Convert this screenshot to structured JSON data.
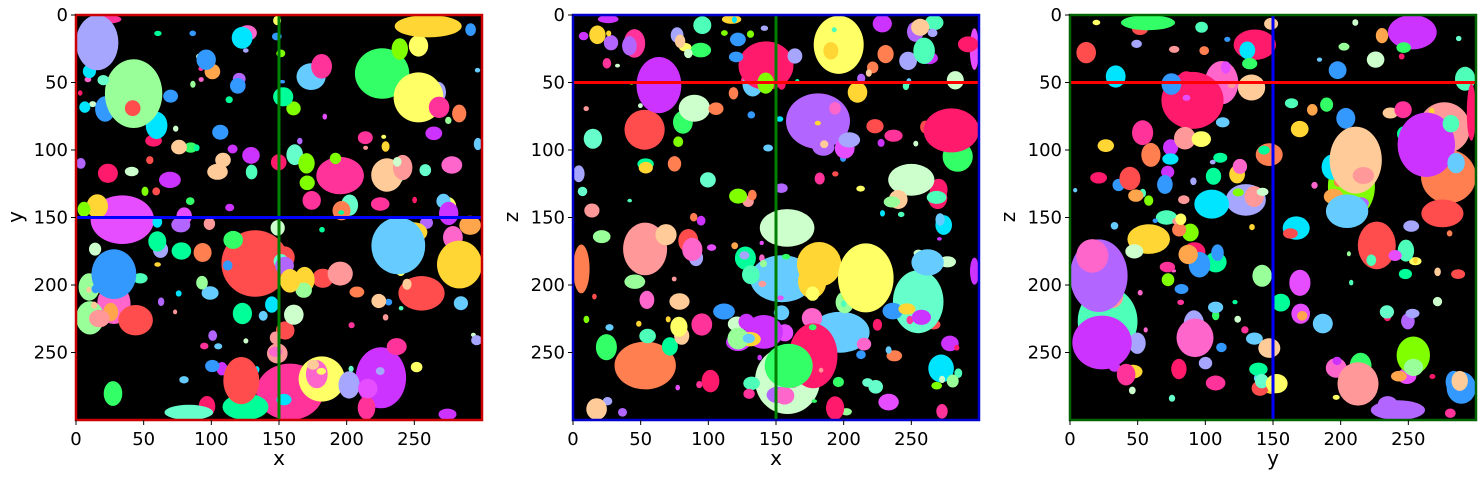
{
  "chart_data": [
    {
      "type": "heatmap",
      "title": "",
      "xlabel": "x",
      "ylabel": "y",
      "xlim": [
        0,
        300
      ],
      "ylim": [
        300,
        0
      ],
      "xticks": [
        "0",
        "50",
        "100",
        "150",
        "200",
        "250"
      ],
      "yticks": [
        "0",
        "50",
        "100",
        "150",
        "200",
        "250"
      ],
      "frame_color": "#cc0000",
      "crosshairs": [
        {
          "orientation": "vertical",
          "value": 150,
          "color": "#008000"
        },
        {
          "orientation": "horizontal",
          "value": 150,
          "color": "#0000ff"
        }
      ],
      "background": "#000000",
      "seed": 11,
      "blobs": 210
    },
    {
      "type": "heatmap",
      "title": "",
      "xlabel": "x",
      "ylabel": "z",
      "xlim": [
        0,
        300
      ],
      "ylim": [
        300,
        0
      ],
      "xticks": [
        "0",
        "50",
        "100",
        "150",
        "200",
        "250"
      ],
      "yticks": [
        "0",
        "50",
        "100",
        "150",
        "200",
        "250"
      ],
      "frame_color": "#0000cc",
      "crosshairs": [
        {
          "orientation": "vertical",
          "value": 150,
          "color": "#008000"
        },
        {
          "orientation": "horizontal",
          "value": 50,
          "color": "#ff0000"
        }
      ],
      "background": "#000000",
      "seed": 23,
      "blobs": 230
    },
    {
      "type": "heatmap",
      "title": "",
      "xlabel": "y",
      "ylabel": "z",
      "xlim": [
        0,
        300
      ],
      "ylim": [
        300,
        0
      ],
      "xticks": [
        "0",
        "50",
        "100",
        "150",
        "200",
        "250"
      ],
      "yticks": [
        "0",
        "50",
        "100",
        "150",
        "200",
        "250"
      ],
      "frame_color": "#006400",
      "crosshairs": [
        {
          "orientation": "vertical",
          "value": 150,
          "color": "#0000ff"
        },
        {
          "orientation": "horizontal",
          "value": 50,
          "color": "#ff0000"
        }
      ],
      "background": "#000000",
      "seed": 37,
      "blobs": 200
    }
  ],
  "palette": [
    "#ff1a6b",
    "#7fff00",
    "#00e5ff",
    "#b266ff",
    "#ffa64d",
    "#66ffcc",
    "#ff66cc",
    "#ffff66",
    "#3399ff",
    "#ff4d4d",
    "#99ff99",
    "#ffcc99",
    "#cc33ff",
    "#33ff66",
    "#ff9999",
    "#66ccff",
    "#ffd633",
    "#e64dff",
    "#4dffb8",
    "#ff7f50",
    "#ccffcc",
    "#a6a6ff",
    "#ff3399",
    "#00ff99"
  ]
}
